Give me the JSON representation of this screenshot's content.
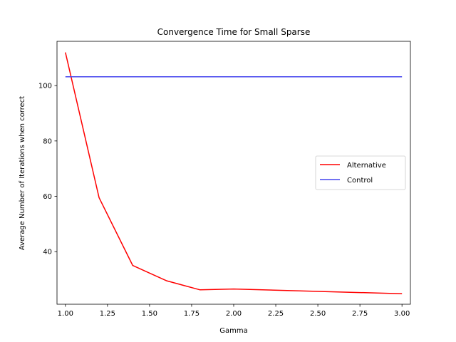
{
  "chart_data": {
    "type": "line",
    "title": "Convergence Time for Small Sparse",
    "xlabel": "Gamma",
    "ylabel": "Average Number of Iterations when correct",
    "xlim": [
      0.95,
      3.05
    ],
    "ylim": [
      21,
      116
    ],
    "xticks": [
      1.0,
      1.25,
      1.5,
      1.75,
      2.0,
      2.25,
      2.5,
      2.75,
      3.0
    ],
    "xtick_labels": [
      "1.00",
      "1.25",
      "1.50",
      "1.75",
      "2.00",
      "2.25",
      "2.50",
      "2.75",
      "3.00"
    ],
    "yticks": [
      40,
      60,
      80,
      100
    ],
    "ytick_labels": [
      "40",
      "60",
      "80",
      "100"
    ],
    "grid": false,
    "legend_position": "center-right",
    "series": [
      {
        "name": "Alternative",
        "color": "#ff0000",
        "x": [
          1.0,
          1.2,
          1.4,
          1.6,
          1.8,
          2.0,
          3.0
        ],
        "y": [
          112,
          59.5,
          35,
          29.5,
          26.2,
          26.5,
          24.8
        ]
      },
      {
        "name": "Control",
        "color": "#4444ee",
        "x": [
          1.0,
          3.0
        ],
        "y": [
          103.2,
          103.2
        ]
      }
    ]
  }
}
